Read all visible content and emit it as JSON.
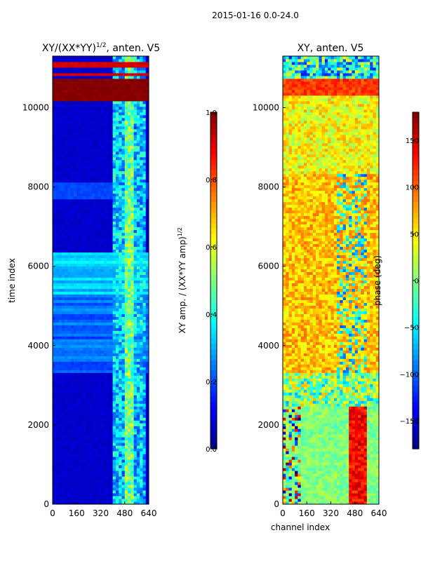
{
  "suptitle": "2015-01-16 0.0-24.0",
  "colormap": {
    "name": "jet",
    "stops": [
      "#00007f",
      "#0000ff",
      "#007fff",
      "#00ffff",
      "#7fff7f",
      "#ffff00",
      "#ff7f00",
      "#ff0000",
      "#7f0000"
    ]
  },
  "chart_data": [
    {
      "type": "heatmap",
      "title": "XY/(XX*YY)^1/2, anten. V5",
      "title_main": "XY/(XX*YY)",
      "title_sup": "1/2",
      "title_rest": ", anten. V5",
      "xlabel": "",
      "ylabel": "time index",
      "xlim": [
        0,
        640
      ],
      "ylim": [
        0,
        11300
      ],
      "xticks": [
        0,
        160,
        320,
        480,
        640
      ],
      "yticks": [
        0,
        2000,
        4000,
        6000,
        8000,
        10000
      ],
      "grid": false,
      "colorbar": {
        "label": "XY amp. / (XX*YY amp)^1/2",
        "label_main": "XY amp. / (XX*YY amp)",
        "label_sup": "1/2",
        "range": [
          0.0,
          1.0
        ],
        "ticks": [
          0.0,
          0.2,
          0.4,
          0.6,
          0.8,
          1.0
        ],
        "tick_labels": [
          "0.0",
          "0.2",
          "0.4",
          "0.6",
          "0.8",
          "1.0"
        ]
      }
    },
    {
      "type": "heatmap",
      "title": "XY, anten. V5",
      "xlabel": "channel index",
      "ylabel": "",
      "xlim": [
        0,
        640
      ],
      "ylim": [
        0,
        11300
      ],
      "xticks": [
        0,
        160,
        320,
        480,
        640
      ],
      "yticks": [
        0,
        2000,
        4000,
        6000,
        8000,
        10000
      ],
      "grid": false,
      "colorbar": {
        "label": "phase (deg)",
        "range": [
          -180,
          180
        ],
        "ticks": [
          -150,
          -100,
          -50,
          0,
          50,
          100,
          150
        ],
        "tick_labels": [
          "−150",
          "−100",
          "−50",
          "0",
          "50",
          "100",
          "150"
        ]
      }
    }
  ]
}
